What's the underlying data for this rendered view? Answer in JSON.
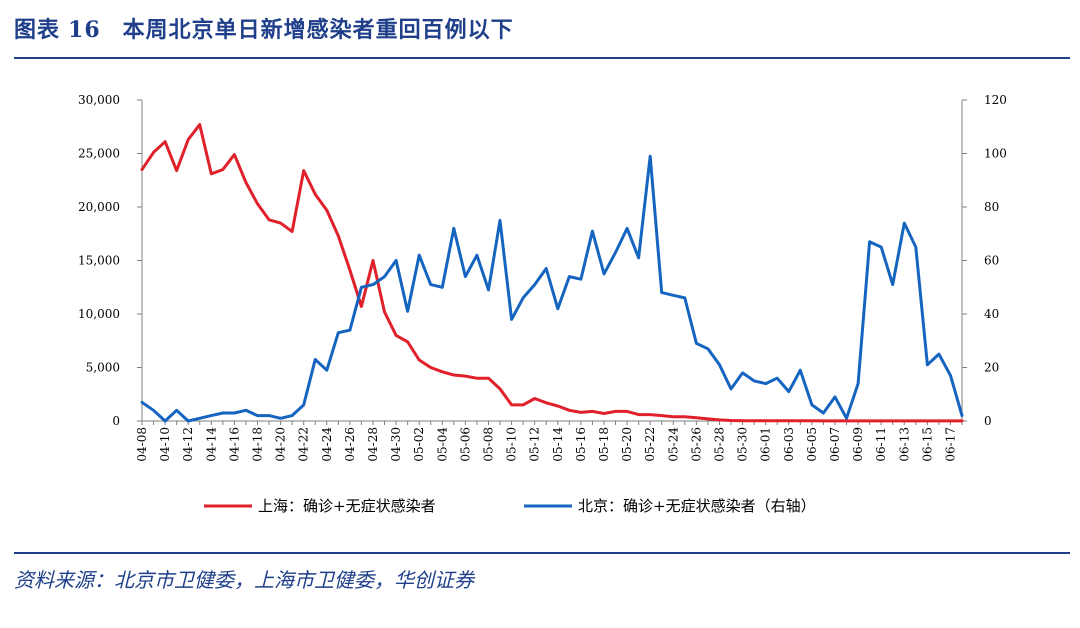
{
  "figure": {
    "label": "图表",
    "number": "16",
    "title": "本周北京单日新增感染者重回百例以下"
  },
  "source_text": "资料来源：北京市卫健委，上海市卫健委，华创证券",
  "colors": {
    "shanghai": "#e0202a",
    "beijing": "#1565c0",
    "accent": "#1f3f8a",
    "axis": "#7f7f7f"
  },
  "chart_data": {
    "type": "line",
    "categories": [
      "04-08",
      "04-09",
      "04-10",
      "04-11",
      "04-12",
      "04-13",
      "04-14",
      "04-15",
      "04-16",
      "04-17",
      "04-18",
      "04-19",
      "04-20",
      "04-21",
      "04-22",
      "04-23",
      "04-24",
      "04-25",
      "04-26",
      "04-27",
      "04-28",
      "04-29",
      "04-30",
      "05-01",
      "05-02",
      "05-03",
      "05-04",
      "05-05",
      "05-06",
      "05-07",
      "05-08",
      "05-09",
      "05-10",
      "05-11",
      "05-12",
      "05-13",
      "05-14",
      "05-15",
      "05-16",
      "05-17",
      "05-18",
      "05-19",
      "05-20",
      "05-21",
      "05-22",
      "05-23",
      "05-24",
      "05-25",
      "05-26",
      "05-27",
      "05-28",
      "05-29",
      "05-30",
      "05-31",
      "06-01",
      "06-02",
      "06-03",
      "06-04",
      "06-05",
      "06-06",
      "06-07",
      "06-08",
      "06-09",
      "06-10",
      "06-11",
      "06-12",
      "06-13",
      "06-14",
      "06-15",
      "06-16",
      "06-17",
      "06-18"
    ],
    "x_tick_labels": [
      "04-08",
      "04-10",
      "04-12",
      "04-14",
      "04-16",
      "04-18",
      "04-20",
      "04-22",
      "04-24",
      "04-26",
      "04-28",
      "04-30",
      "05-02",
      "05-04",
      "05-06",
      "05-08",
      "05-10",
      "05-12",
      "05-14",
      "05-16",
      "05-18",
      "05-20",
      "05-22",
      "05-24",
      "05-26",
      "05-28",
      "05-30",
      "06-01",
      "06-03",
      "06-05",
      "06-07",
      "06-09",
      "06-11",
      "06-13",
      "06-15",
      "06-17"
    ],
    "y_left": {
      "ylim": [
        0,
        30000
      ],
      "ticks": [
        "0",
        "5,000",
        "10,000",
        "15,000",
        "20,000",
        "25,000",
        "30,000"
      ]
    },
    "y_right": {
      "ylim": [
        0,
        120
      ],
      "ticks": [
        "0",
        "20",
        "40",
        "60",
        "80",
        "100",
        "120"
      ]
    },
    "series": [
      {
        "name": "上海：确诊+无症状感染者",
        "axis": "left",
        "values": [
          23500,
          25100,
          26100,
          23400,
          26300,
          27700,
          23100,
          23500,
          24900,
          22300,
          20300,
          18800,
          18500,
          17700,
          23400,
          21200,
          19700,
          17300,
          14100,
          10700,
          15000,
          10200,
          8000,
          7400,
          5700,
          5000,
          4600,
          4300,
          4200,
          4000,
          4000,
          3000,
          1500,
          1500,
          2100,
          1700,
          1400,
          1000,
          800,
          900,
          700,
          900,
          900,
          600,
          600,
          500,
          400,
          400,
          300,
          200,
          100,
          50,
          30,
          25,
          20,
          20,
          20,
          15,
          15,
          12,
          12,
          10,
          10,
          10,
          10,
          8,
          8,
          8,
          8,
          8,
          8,
          8
        ]
      },
      {
        "name": "北京：确诊+无症状感染者（右轴）",
        "axis": "right",
        "values": [
          7,
          4,
          0,
          4,
          0,
          1,
          2,
          3,
          3,
          4,
          2,
          2,
          1,
          2,
          6,
          23,
          19,
          33,
          34,
          50,
          51,
          54,
          60,
          41,
          62,
          51,
          50,
          72,
          54,
          62,
          49,
          75,
          38,
          46,
          51,
          57,
          42,
          54,
          53,
          71,
          55,
          63,
          72,
          61,
          99,
          48,
          47,
          46,
          29,
          27,
          21,
          12,
          18,
          15,
          14,
          16,
          11,
          19,
          6,
          3,
          9,
          1,
          14,
          67,
          65,
          51,
          74,
          65,
          21,
          25,
          17,
          2
        ]
      }
    ],
    "legend_position": "bottom",
    "grid": false
  }
}
